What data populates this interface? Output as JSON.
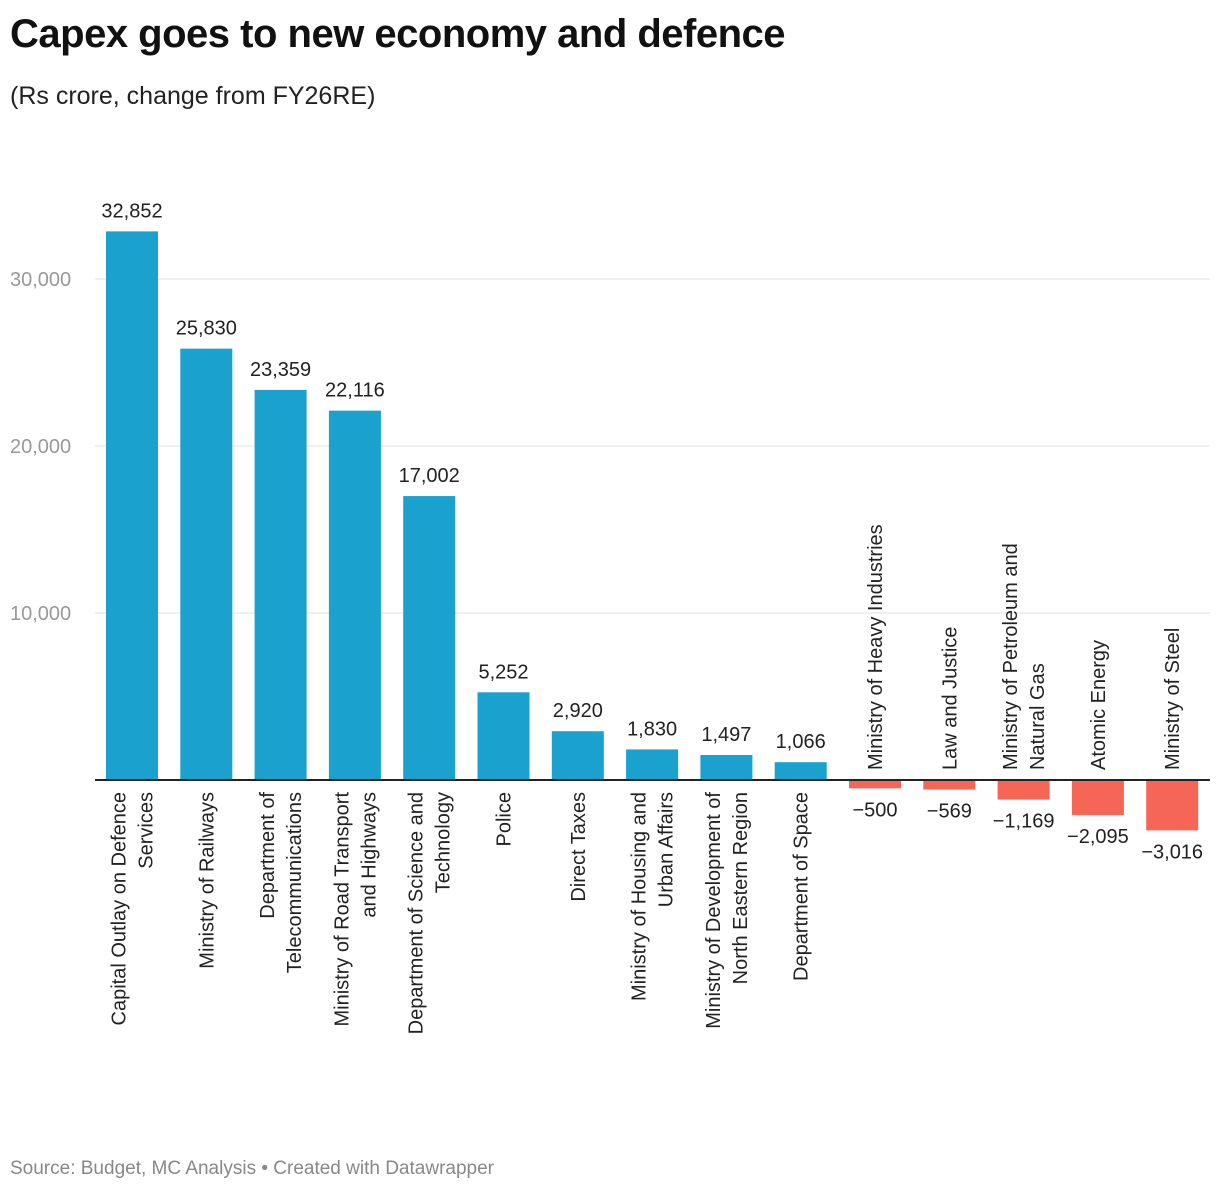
{
  "chart_data": {
    "type": "bar",
    "title": "Capex goes to new economy and defence",
    "subtitle": "(Rs crore, change from FY26RE)",
    "source": "Source: Budget, MC Analysis • Created with Datawrapper",
    "categories": [
      [
        "Capital Outlay on Defence",
        "Services"
      ],
      [
        "Ministry of Railways"
      ],
      [
        "Department of",
        "Telecommunications"
      ],
      [
        "Ministry of Road Transport",
        "and Highways"
      ],
      [
        "Department of Science and",
        "Technology"
      ],
      [
        "Police"
      ],
      [
        "Direct Taxes"
      ],
      [
        "Ministry of Housing and",
        "Urban Affairs"
      ],
      [
        "Ministry of Development of",
        "North Eastern Region"
      ],
      [
        "Department of Space"
      ],
      [
        "Ministry of Heavy Industries"
      ],
      [
        "Law and Justice"
      ],
      [
        "Ministry of Petroleum and",
        "Natural Gas"
      ],
      [
        "Atomic Energy"
      ],
      [
        "Ministry of Steel"
      ]
    ],
    "values": [
      32852,
      25830,
      23359,
      22116,
      17002,
      5252,
      2920,
      1830,
      1497,
      1066,
      -500,
      -569,
      -1169,
      -2095,
      -3016
    ],
    "value_labels": [
      "32,852",
      "25,830",
      "23,359",
      "22,116",
      "17,002",
      "5,252",
      "2,920",
      "1,830",
      "1,497",
      "1,066",
      "−500",
      "−569",
      "−1,169",
      "−2,095",
      "−3,016"
    ],
    "yticks": [
      10000,
      20000,
      30000
    ],
    "ytick_labels": [
      "10,000",
      "20,000",
      "30,000"
    ],
    "ylim": [
      -3016,
      32852
    ],
    "grid": true,
    "colors": {
      "positive": "#1aa1cd",
      "negative": "#f66657"
    }
  }
}
